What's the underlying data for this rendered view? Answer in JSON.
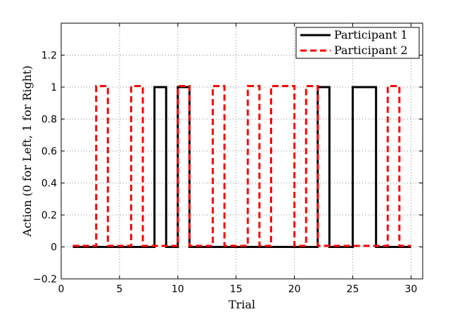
{
  "chart_data": {
    "type": "line",
    "title": "",
    "xlabel": "Trial",
    "ylabel": "Action (0 for Left, 1 for Right)",
    "xlim": [
      0,
      31
    ],
    "ylim": [
      -0.2,
      1.4
    ],
    "x_ticks": [
      0,
      5,
      10,
      15,
      20,
      25,
      30
    ],
    "y_ticks": [
      -0.2,
      0,
      0.2,
      0.4,
      0.6,
      0.8,
      1,
      1.2
    ],
    "grid": true,
    "legend_position": "top-right",
    "x": [
      1,
      2,
      3,
      4,
      5,
      6,
      7,
      8,
      9,
      10,
      11,
      12,
      13,
      14,
      15,
      16,
      17,
      18,
      19,
      20,
      21,
      22,
      23,
      24,
      25,
      26,
      27,
      28,
      29,
      30
    ],
    "series": [
      {
        "name": "Participant 1",
        "color": "#000000",
        "style": "solid",
        "values": [
          0,
          0,
          0,
          0,
          0,
          0,
          0,
          1,
          0,
          1,
          0,
          0,
          0,
          0,
          0,
          0,
          0,
          0,
          0,
          0,
          0,
          1,
          0,
          0,
          1,
          1,
          0,
          0,
          0,
          0
        ]
      },
      {
        "name": "Participant 2",
        "color": "#ff0000",
        "style": "dashed",
        "values": [
          0,
          0,
          1,
          0,
          0,
          1,
          0,
          0,
          0,
          1,
          0,
          0,
          1,
          0,
          0,
          1,
          0,
          1,
          1,
          0,
          1,
          0,
          0,
          0,
          0,
          0,
          0,
          1,
          0,
          0
        ]
      }
    ]
  }
}
